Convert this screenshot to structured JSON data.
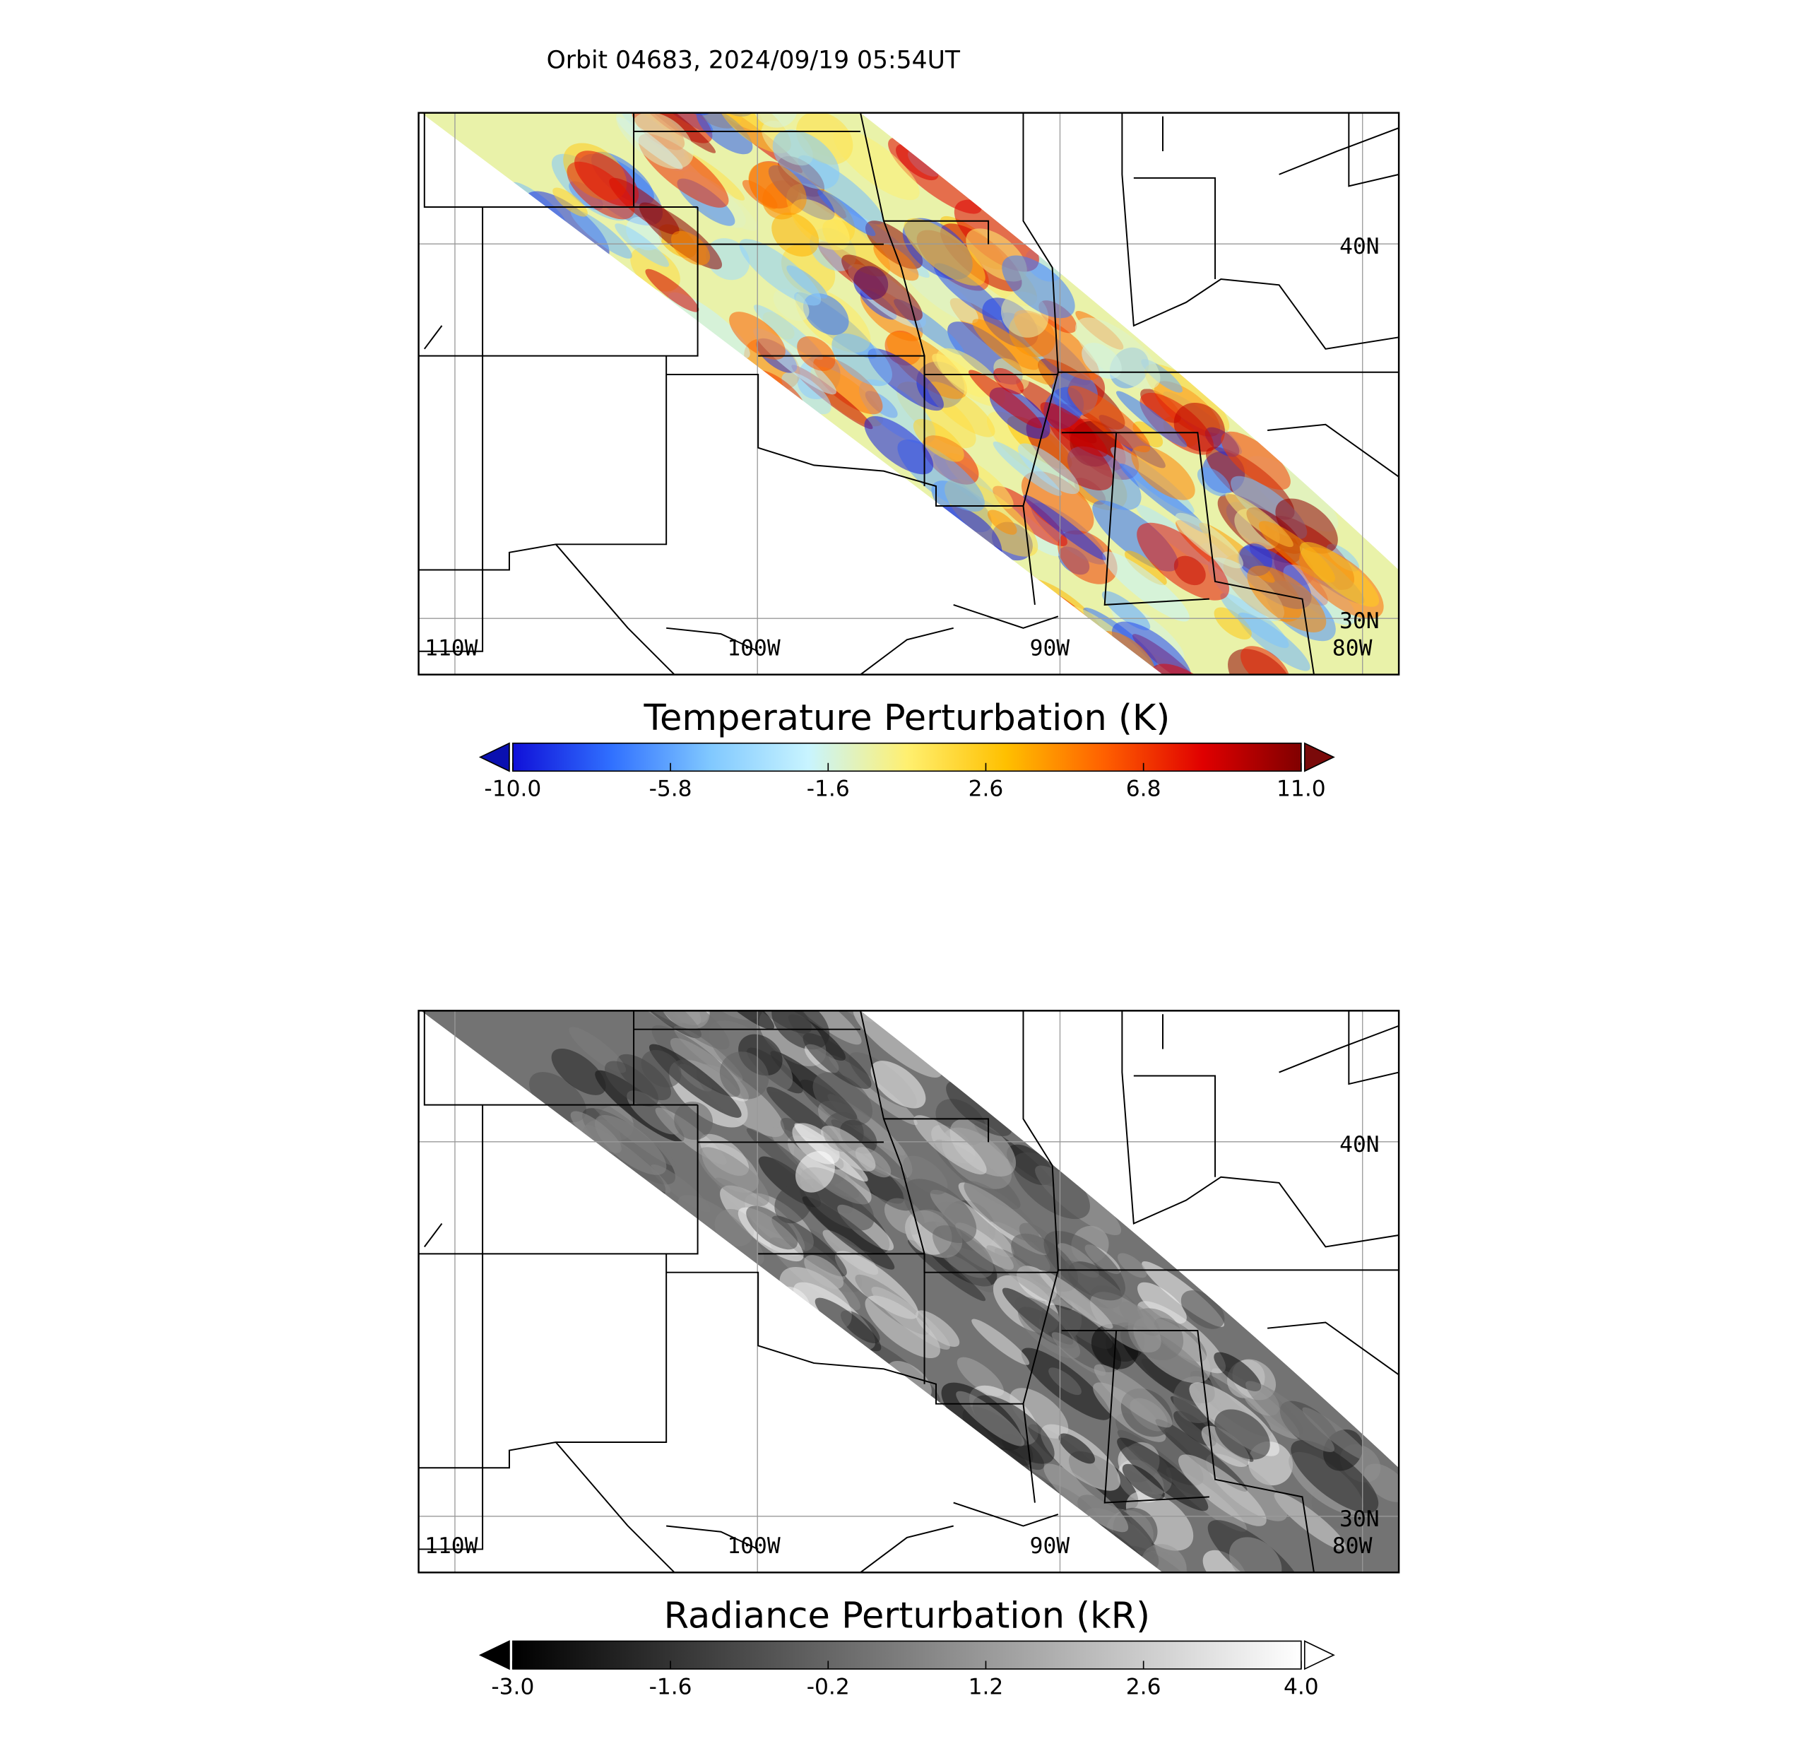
{
  "title": "Orbit 04683, 2024/09/19 05:54UT",
  "panels": [
    {
      "lon_range": [
        -111.2,
        -78.8
      ],
      "lat_range": [
        28.5,
        43.5
      ],
      "lon_lines": [
        {
          "value": -110,
          "label": "110W"
        },
        {
          "value": -100,
          "label": "100W"
        },
        {
          "value": -90,
          "label": "90W"
        },
        {
          "value": -80,
          "label": "80W"
        }
      ],
      "lat_lines": [
        {
          "value": 40,
          "label": "40N"
        },
        {
          "value": 30,
          "label": "30N"
        }
      ],
      "colorbar": {
        "label": "Temperature Perturbation (K)",
        "range": [
          -10,
          11
        ],
        "ticks": [
          {
            "value": -10,
            "label": "-10.0"
          },
          -5.8,
          -1.6,
          2.6,
          6.8,
          {
            "value": 11,
            "label": "11.0"
          }
        ],
        "colors": [
          "#1010d8",
          "#3070ff",
          "#80c8ff",
          "#c8f4ff",
          "#fff070",
          "#ffc000",
          "#ff6000",
          "#e00000",
          "#800000"
        ],
        "under_color": "#0a10b0",
        "over_color": "#7a0a0a"
      }
    },
    {
      "lon_range": [
        -111.2,
        -78.8
      ],
      "lat_range": [
        28.5,
        43.5
      ],
      "lon_lines": [
        {
          "value": -110,
          "label": "110W"
        },
        {
          "value": -100,
          "label": "100W"
        },
        {
          "value": -90,
          "label": "90W"
        },
        {
          "value": -80,
          "label": "80W"
        }
      ],
      "lat_lines": [
        {
          "value": 40,
          "label": "40N"
        },
        {
          "value": 30,
          "label": "30N"
        }
      ],
      "colorbar": {
        "label": "Radiance Perturbation (kR)",
        "range": [
          -3,
          4
        ],
        "ticks": [
          {
            "value": -3,
            "label": "-3.0"
          },
          -1.6,
          -0.2,
          1.2,
          2.6,
          {
            "value": 4,
            "label": "4.0"
          }
        ],
        "colors": [
          "#000000",
          "#ffffff"
        ],
        "under_color": "#000000",
        "over_color": "#ffffff"
      }
    }
  ]
}
